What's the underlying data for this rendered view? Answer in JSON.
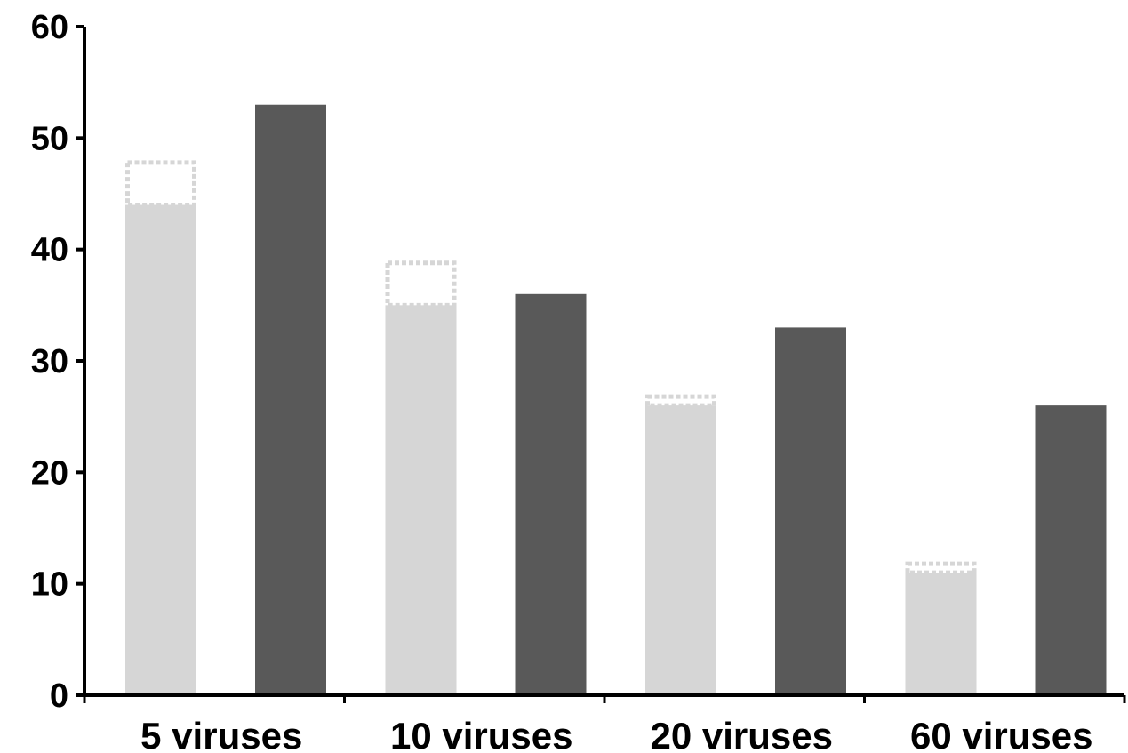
{
  "chart_data": {
    "type": "bar",
    "categories": [
      "5 viruses",
      "10 viruses",
      "20 viruses",
      "60 viruses"
    ],
    "series": [
      {
        "values": [
          44,
          35,
          26,
          11
        ],
        "extension": [
          48,
          39,
          27,
          12
        ],
        "color": "#d6d6d6",
        "extension_style": "dotted-outline"
      },
      {
        "values": [
          53,
          36,
          33,
          26
        ],
        "color": "#595959"
      }
    ],
    "ylim": [
      0,
      60
    ],
    "yticks": [
      "0",
      "10",
      "20",
      "30",
      "40",
      "50",
      "60"
    ],
    "title": "",
    "xlabel": "",
    "ylabel": "",
    "grid": false,
    "axis_color": "#000000"
  }
}
